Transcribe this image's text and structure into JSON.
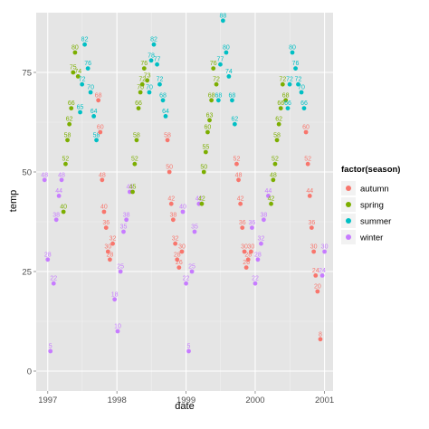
{
  "chart_data": {
    "type": "scatter",
    "title": "",
    "xlabel": "date",
    "ylabel": "temp",
    "x_ticks": [
      "1997",
      "1998",
      "1999",
      "2000",
      "2001"
    ],
    "y_ticks": [
      0,
      25,
      50,
      75
    ],
    "xlim": [
      "1996-11-01",
      "2001-02-15"
    ],
    "ylim": [
      -5,
      90
    ],
    "grid": true,
    "legend": {
      "title": "factor(season)",
      "position": "right",
      "entries": [
        "autumn",
        "spring",
        "summer",
        "winter"
      ]
    },
    "point_label": "temp",
    "colors": {
      "autumn": "#F8766D",
      "spring": "#7CAE00",
      "summer": "#00BFC4",
      "winter": "#C77CFF",
      "panel": "#E5E5E5",
      "grid_major": "#FFFFFF",
      "grid_minor": "#F2F2F2"
    },
    "series": [
      {
        "name": "winter",
        "x": [
          "1996-12-15",
          "1997-01-01",
          "1997-01-15",
          "1997-02-01",
          "1997-02-15",
          "1997-03-01",
          "1997-03-15",
          "1997-12-20",
          "1998-01-05",
          "1998-01-20",
          "1998-02-05",
          "1998-02-20",
          "1998-03-10",
          "1998-12-15",
          "1999-01-01",
          "1999-01-15",
          "1999-02-01",
          "1999-02-15",
          "1999-03-10",
          "1999-12-15",
          "2000-01-01",
          "2000-01-15",
          "2000-02-01",
          "2000-02-15",
          "2000-03-10",
          "2000-12-20",
          "2001-01-01"
        ],
        "y": [
          48,
          28,
          5,
          22,
          38,
          44,
          48,
          18,
          10,
          25,
          35,
          38,
          45,
          40,
          22,
          5,
          25,
          35,
          42,
          36,
          22,
          28,
          32,
          38,
          44,
          24,
          30
        ]
      },
      {
        "name": "spring",
        "x": [
          "1997-03-25",
          "1997-04-05",
          "1997-04-15",
          "1997-04-25",
          "1997-05-05",
          "1997-05-15",
          "1997-05-25",
          "1997-06-10",
          "1998-03-25",
          "1998-04-05",
          "1998-04-15",
          "1998-04-25",
          "1998-05-05",
          "1998-05-15",
          "1998-05-25",
          "1998-06-10",
          "1999-03-25",
          "1999-04-05",
          "1999-04-15",
          "1999-04-25",
          "1999-05-05",
          "1999-05-15",
          "1999-05-25",
          "1999-06-10",
          "2000-03-25",
          "2000-04-05",
          "2000-04-15",
          "2000-04-25",
          "2000-05-05",
          "2000-05-15",
          "2000-05-25",
          "2000-06-10"
        ],
        "y": [
          40,
          52,
          58,
          62,
          66,
          75,
          80,
          74,
          45,
          52,
          58,
          66,
          70,
          72,
          76,
          73,
          42,
          50,
          55,
          60,
          63,
          68,
          76,
          72,
          42,
          48,
          52,
          58,
          62,
          66,
          72,
          68
        ]
      },
      {
        "name": "summer",
        "x": [
          "1997-06-21",
          "1997-07-01",
          "1997-07-15",
          "1997-08-01",
          "1997-08-15",
          "1997-09-01",
          "1997-09-15",
          "1998-06-21",
          "1998-07-01",
          "1998-07-15",
          "1998-08-01",
          "1998-08-15",
          "1998-09-01",
          "1998-09-15",
          "1999-06-21",
          "1999-07-01",
          "1999-07-15",
          "1999-08-01",
          "1999-08-15",
          "1999-09-01",
          "1999-09-15",
          "2000-06-21",
          "2000-07-01",
          "2000-07-15",
          "2000-08-01",
          "2000-08-15",
          "2000-09-01",
          "2000-09-15"
        ],
        "y": [
          65,
          72,
          82,
          76,
          70,
          64,
          58,
          70,
          78,
          82,
          77,
          72,
          68,
          64,
          68,
          77,
          88,
          80,
          74,
          68,
          62,
          66,
          72,
          80,
          76,
          72,
          70,
          66
        ]
      },
      {
        "name": "autumn",
        "x": [
          "1997-09-25",
          "1997-10-05",
          "1997-10-15",
          "1997-10-25",
          "1997-11-05",
          "1997-11-15",
          "1997-11-25",
          "1997-12-10",
          "1998-09-25",
          "1998-10-05",
          "1998-10-15",
          "1998-10-25",
          "1998-11-05",
          "1998-11-15",
          "1998-11-25",
          "1998-12-10",
          "1999-09-25",
          "1999-10-05",
          "1999-10-15",
          "1999-10-25",
          "1999-11-05",
          "1999-11-15",
          "1999-11-25",
          "1999-12-10",
          "2000-09-25",
          "2000-10-05",
          "2000-10-15",
          "2000-10-25",
          "2000-11-05",
          "2000-11-15",
          "2000-11-25",
          "2000-12-10"
        ],
        "y": [
          68,
          60,
          48,
          40,
          36,
          30,
          28,
          32,
          58,
          50,
          42,
          38,
          32,
          28,
          26,
          30,
          52,
          48,
          42,
          36,
          30,
          26,
          28,
          30,
          60,
          52,
          44,
          36,
          30,
          24,
          20,
          8
        ]
      }
    ]
  }
}
